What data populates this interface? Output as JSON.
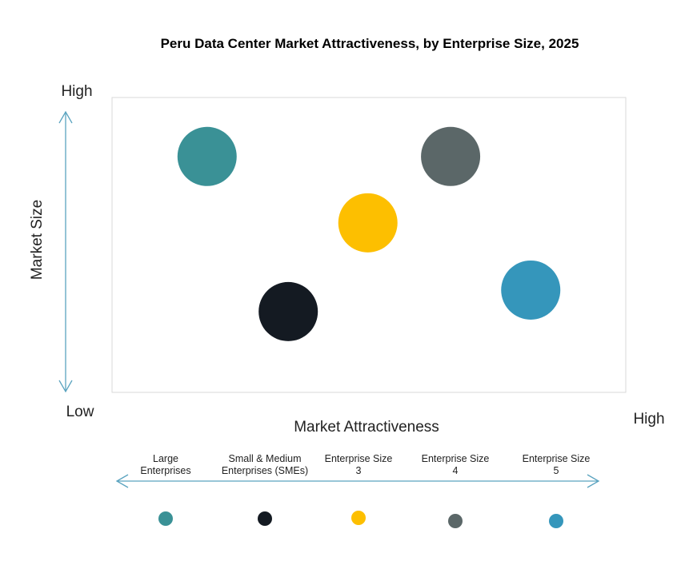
{
  "chart_data": {
    "type": "scatter",
    "title": "Peru Data Center Market Attractiveness,  by Enterprise Size, 2025",
    "xlabel": "Market Attractiveness",
    "ylabel": "Market Size",
    "x_low_label": "Low",
    "x_high_label": "High",
    "y_high_label": "High",
    "xlim": [
      0,
      100
    ],
    "ylim": [
      0,
      100
    ],
    "grid": false,
    "legend_placement": "bottom",
    "series": [
      {
        "name": "Large Enterprises",
        "legend_lines": [
          "Large",
          "Enterprises"
        ],
        "x": 18.5,
        "y": 80,
        "color": "#3a9196"
      },
      {
        "name": "Small & Medium Enterprises (SMEs)",
        "legend_lines": [
          "Small & Medium",
          "Enterprises (SMEs)"
        ],
        "x": 34.3,
        "y": 27.4,
        "color": "#141a22"
      },
      {
        "name": "Enterprise Size 3",
        "legend_lines": [
          "Enterprise Size",
          "3"
        ],
        "x": 49.8,
        "y": 57.5,
        "color": "#fdbf00"
      },
      {
        "name": "Enterprise Size 4",
        "legend_lines": [
          "Enterprise Size",
          "4"
        ],
        "x": 65.9,
        "y": 80,
        "color": "#5b6768"
      },
      {
        "name": "Enterprise Size 5",
        "legend_lines": [
          "Enterprise Size",
          "5"
        ],
        "x": 81.5,
        "y": 34.7,
        "color": "#3596bb"
      }
    ]
  }
}
